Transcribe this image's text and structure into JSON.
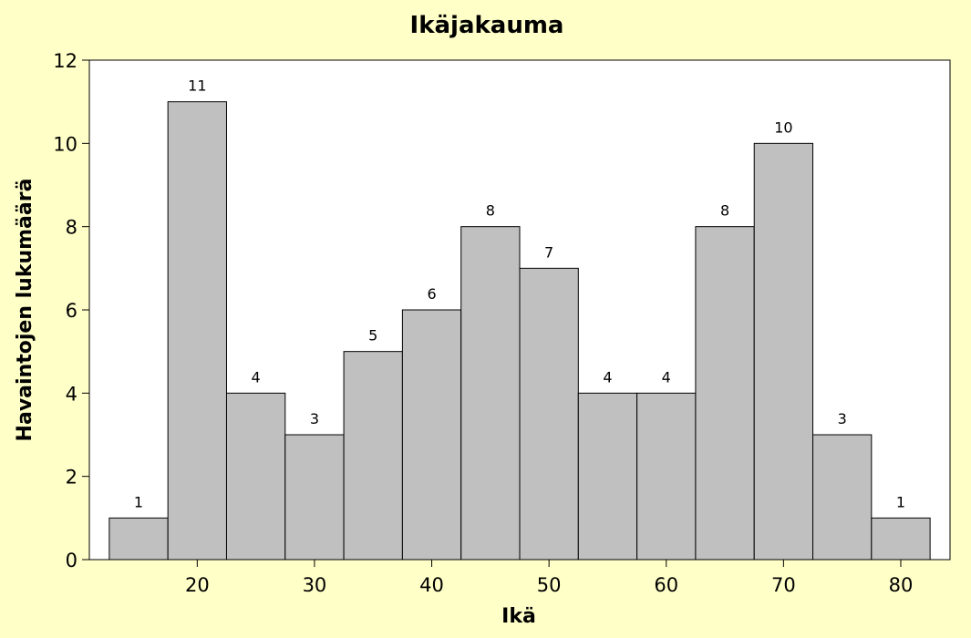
{
  "chart_data": {
    "type": "bar",
    "title": "Ikäjakauma",
    "xlabel": "Ikä",
    "ylabel": "Havaintojen lukumäärä",
    "bin_width": 5,
    "bin_centers": [
      15,
      20,
      25,
      30,
      35,
      40,
      45,
      50,
      55,
      60,
      65,
      70,
      75,
      80
    ],
    "values": [
      1,
      11,
      4,
      3,
      5,
      6,
      8,
      7,
      4,
      4,
      8,
      10,
      3,
      1
    ],
    "data_labels": [
      "1",
      "11",
      "4",
      "3",
      "5",
      "6",
      "8",
      "7",
      "4",
      "4",
      "8",
      "10",
      "3",
      "1"
    ],
    "xlim": [
      10.8,
      84.2
    ],
    "ylim": [
      0,
      12
    ],
    "x_ticks": [
      20,
      30,
      40,
      50,
      60,
      70,
      80
    ],
    "x_tick_labels": [
      "20",
      "30",
      "40",
      "50",
      "60",
      "70",
      "80"
    ],
    "y_ticks": [
      0,
      2,
      4,
      6,
      8,
      10,
      12
    ],
    "y_tick_labels": [
      "0",
      "2",
      "4",
      "6",
      "8",
      "10",
      "12"
    ],
    "grid": false,
    "colors": {
      "background": "#FFFFC8",
      "plot_area": "#FFFFFF",
      "bar_fill": "#C0C0C0",
      "bar_edge": "#000000"
    }
  }
}
